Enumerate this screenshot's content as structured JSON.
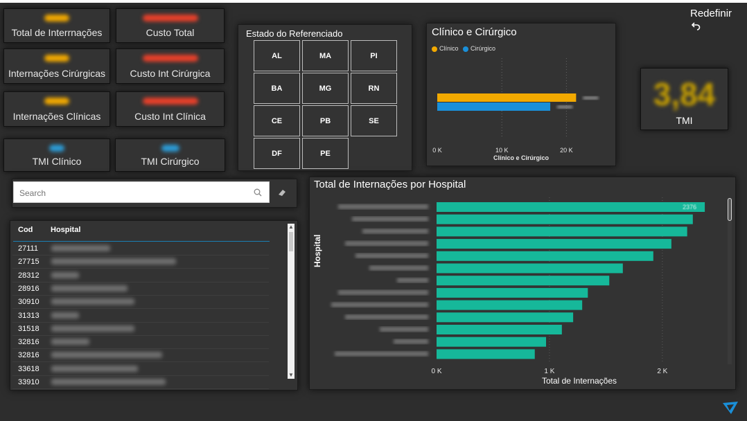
{
  "header": {
    "reset_label": "Redefinir"
  },
  "kpis": [
    {
      "label": "Total de Interrnações",
      "value_color": "#f2a900"
    },
    {
      "label": "Custo Total",
      "value_color": "#e8402a"
    },
    {
      "label": "Internações Cirúrgicas",
      "value_color": "#f2a900"
    },
    {
      "label": "Custo Int Cirúrgica",
      "value_color": "#e8402a"
    },
    {
      "label": "Internações Clínicas",
      "value_color": "#f2a900"
    },
    {
      "label": "Custo Int Clínica",
      "value_color": "#e8402a"
    },
    {
      "label": "TMI Clínico",
      "value_color": "#2c9bd6"
    },
    {
      "label": "TMI Cirúrgico",
      "value_color": "#2c9bd6"
    }
  ],
  "estado": {
    "title": "Estado do Referenciado",
    "states": [
      "AL",
      "MA",
      "PI",
      "BA",
      "MG",
      "RN",
      "CE",
      "PB",
      "SE",
      "DF",
      "PE"
    ]
  },
  "tmi": {
    "value": "3,84",
    "label": "TMI",
    "value_color": "#c9a100"
  },
  "search": {
    "placeholder": "Search"
  },
  "table": {
    "headers": {
      "cod": "Cod",
      "hospital": "Hospital"
    },
    "rows": [
      "27111",
      "27715",
      "28312",
      "28916",
      "30910",
      "31313",
      "31518",
      "32816",
      "32816",
      "33618",
      "33910"
    ]
  },
  "chart_clinico": {
    "title": "Clínico e Cirúrgico",
    "legend": [
      "Clínico",
      "Cirúrgico"
    ],
    "colors": {
      "clinico": "#f2a900",
      "cirurgico": "#1a8fd8"
    },
    "xlabel": "Clínico e Cirúrgico",
    "ticks": [
      "0 K",
      "10 K",
      "20 K"
    ]
  },
  "chart_hospital": {
    "title": "Total de Internações por Hospital",
    "xlabel": "Total de Internações",
    "ylabel": "Hospital",
    "ticks": [
      "0 K",
      "1 K",
      "2 K"
    ],
    "bar_color": "#16b89a",
    "first_label": "2376"
  },
  "chart_data": [
    {
      "type": "bar",
      "title": "Clínico e Cirúrgico",
      "orientation": "horizontal",
      "series": [
        {
          "name": "Clínico",
          "values": [
            21500
          ]
        },
        {
          "name": "Cirúrgico",
          "values": [
            17500
          ]
        }
      ],
      "xlabel": "Clínico e Cirúrgico",
      "xlim": [
        0,
        25000
      ],
      "ticks": [
        0,
        10000,
        20000
      ]
    },
    {
      "type": "bar",
      "title": "Total de Internações por Hospital",
      "orientation": "horizontal",
      "values": [
        2376,
        2270,
        2220,
        2080,
        1920,
        1650,
        1530,
        1340,
        1290,
        1210,
        1110,
        970,
        870
      ],
      "xlabel": "Total de Internações",
      "ylabel": "Hospital",
      "xlim": [
        0,
        2400
      ],
      "ticks": [
        0,
        1000,
        2000
      ]
    }
  ]
}
